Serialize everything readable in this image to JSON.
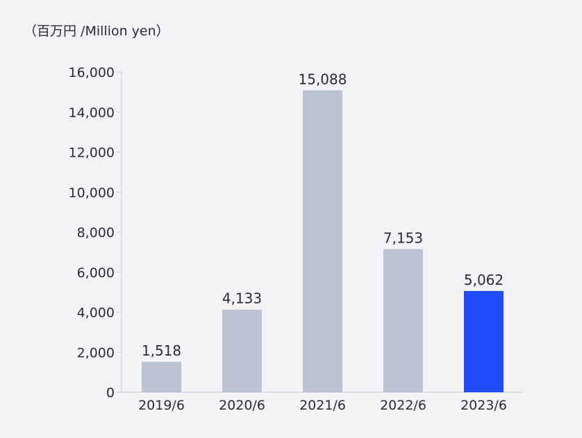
{
  "chart_data": {
    "type": "bar",
    "unit_label": "（百万円 /Million yen）",
    "categories": [
      "2019/6",
      "2020/6",
      "2021/6",
      "2022/6",
      "2023/6"
    ],
    "values": [
      1518,
      4133,
      15088,
      7153,
      5062
    ],
    "value_labels": [
      "1,518",
      "4,133",
      "15,088",
      "7,153",
      "5,062"
    ],
    "ylim": [
      0,
      16000
    ],
    "yticks": [
      0,
      2000,
      4000,
      6000,
      8000,
      10000,
      12000,
      14000,
      16000
    ],
    "ytick_labels": [
      "0",
      "2,000",
      "4,000",
      "6,000",
      "8,000",
      "10,000",
      "12,000",
      "14,000",
      "16,000"
    ],
    "grid": false,
    "colors": {
      "bar": "#bbc2d1",
      "highlight_bar": "#1f4cf6",
      "axis": "#c8c8d0",
      "text": "#2b2b33"
    },
    "highlight_index": 4
  }
}
